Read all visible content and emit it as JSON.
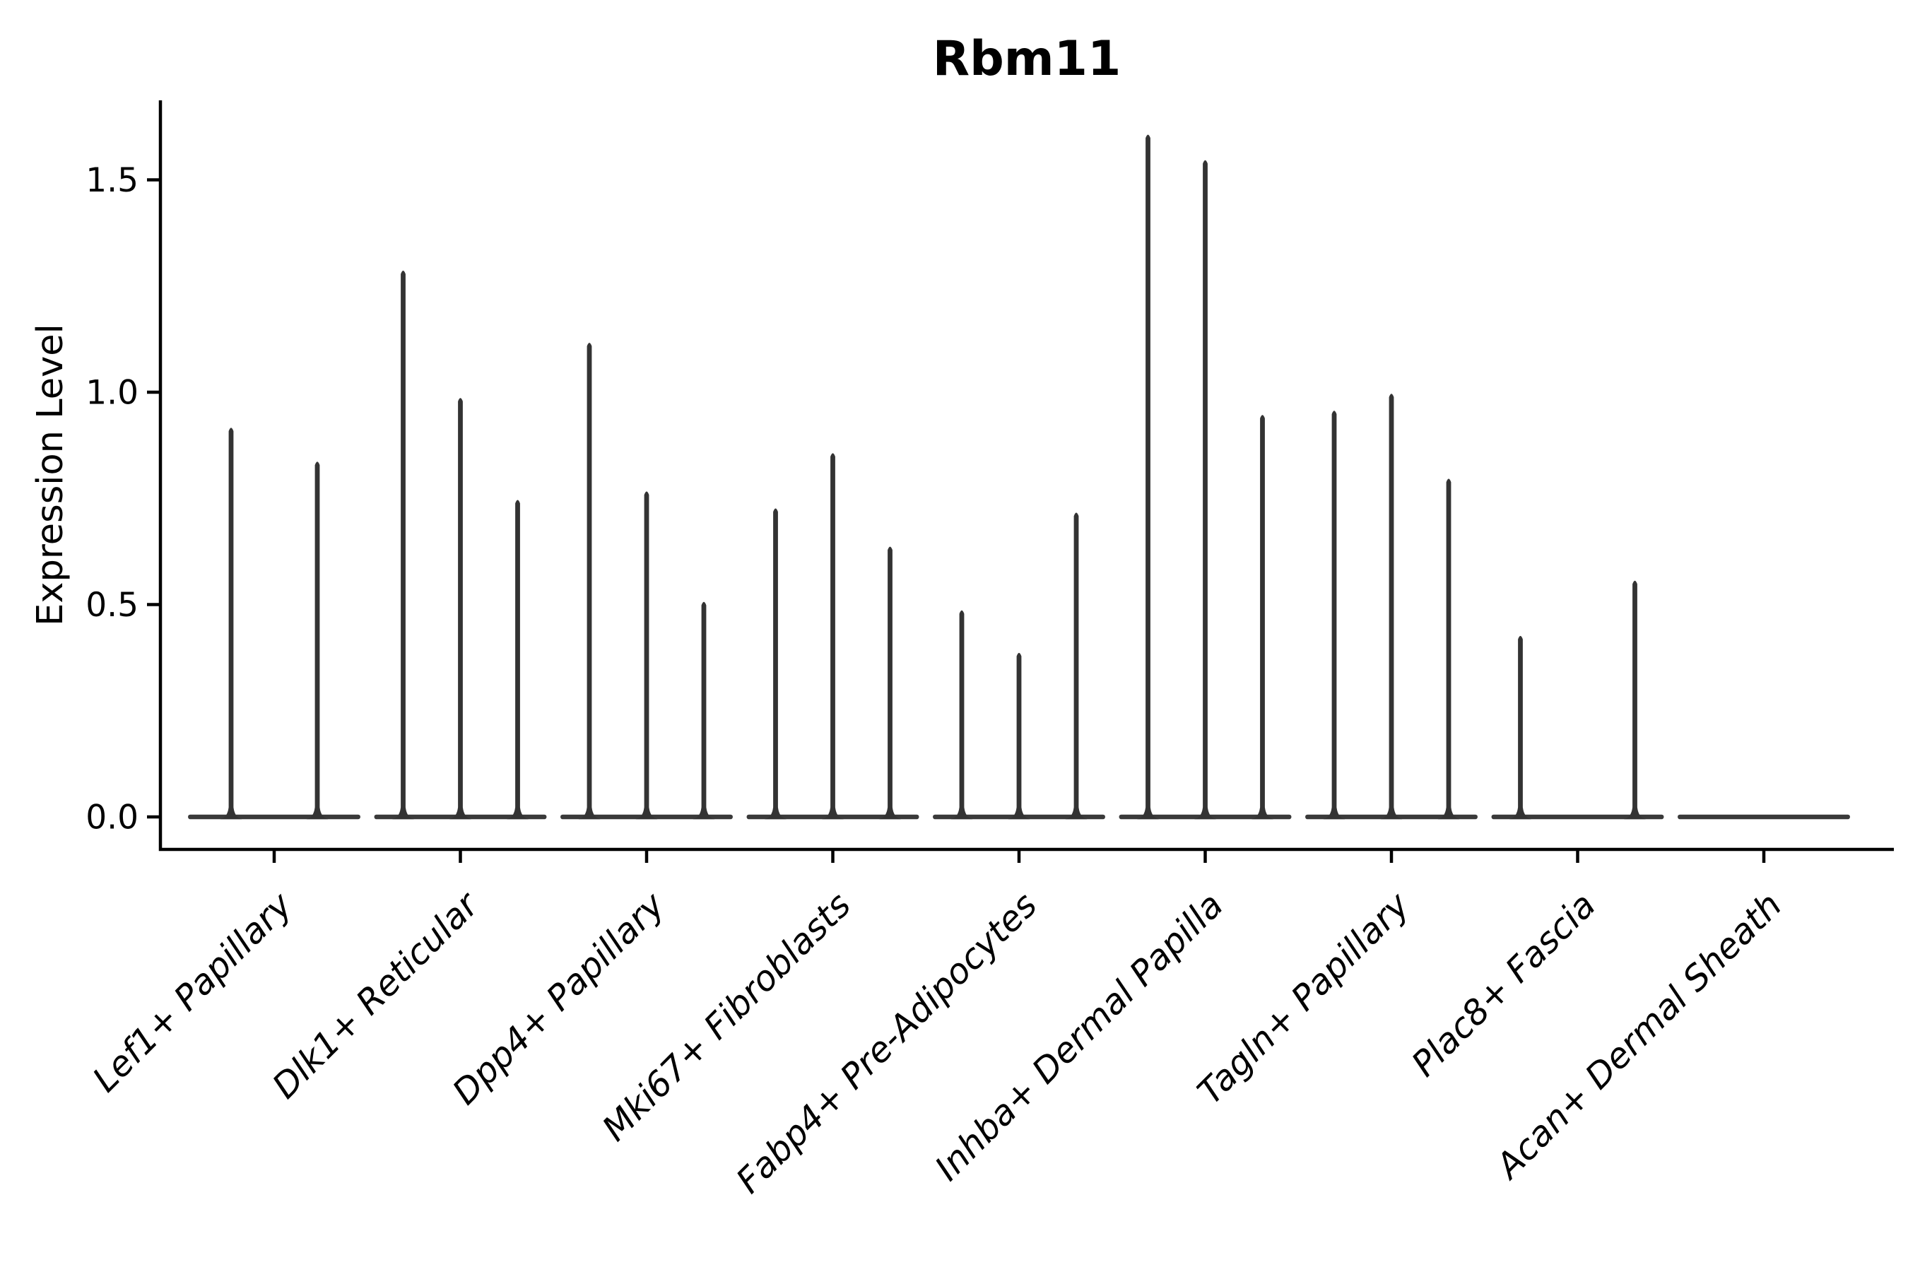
{
  "chart_data": {
    "type": "violin",
    "title": "Rbm11",
    "ylabel": "Expression Level",
    "xlabel": "",
    "background": "#ffffff",
    "grid": false,
    "legend": false,
    "ylim": [
      -0.08,
      1.69
    ],
    "ytick_labels": [
      "0.0",
      "0.5",
      "1.0",
      "1.5"
    ],
    "ytick_values": [
      0,
      0.5,
      1,
      1.5
    ],
    "categories": [
      "Lef1+ Papillary",
      "Dlk1+ Reticular",
      "Dpp4+ Papillary",
      "Mki67+ Fibroblasts",
      "Fabp4+ Pre-Adipocytes",
      "Inhba+ Dermal Papilla",
      "Tagln+ Papillary",
      "Plac8+ Fascia",
      "Acan+ Dermal Sheath"
    ],
    "series": [
      {
        "category": "Lef1+ Papillary",
        "violin_peak_heights": [
          0.92,
          0.84
        ]
      },
      {
        "category": "Dlk1+ Reticular",
        "violin_peak_heights": [
          1.29,
          0.99,
          0.75
        ]
      },
      {
        "category": "Dpp4+ Papillary",
        "violin_peak_heights": [
          1.12,
          0.77,
          0.51
        ]
      },
      {
        "category": "Mki67+ Fibroblasts",
        "violin_peak_heights": [
          0.73,
          0.86,
          0.64
        ]
      },
      {
        "category": "Fabp4+ Pre-Adipocytes",
        "violin_peak_heights": [
          0.49,
          0.39,
          0.72
        ]
      },
      {
        "category": "Inhba+ Dermal Papilla",
        "violin_peak_heights": [
          1.61,
          1.55,
          0.95
        ]
      },
      {
        "category": "Tagln+ Papillary",
        "violin_peak_heights": [
          0.96,
          1.0,
          0.8
        ]
      },
      {
        "category": "Plac8+ Fascia",
        "violin_peak_heights": [
          0.43,
          0,
          0.56
        ]
      },
      {
        "category": "Acan+ Dermal Sheath",
        "violin_peak_heights": [
          0,
          0,
          0
        ]
      }
    ],
    "style_note": "needle-thin violins: nearly all expression mass at 0, shown as a flat dark baseline per group with thin spikes at each violin center",
    "colors": {
      "violin": "#333333",
      "violin_base": "#3a3a3a",
      "axis": "#000000",
      "text": "#000000"
    }
  }
}
